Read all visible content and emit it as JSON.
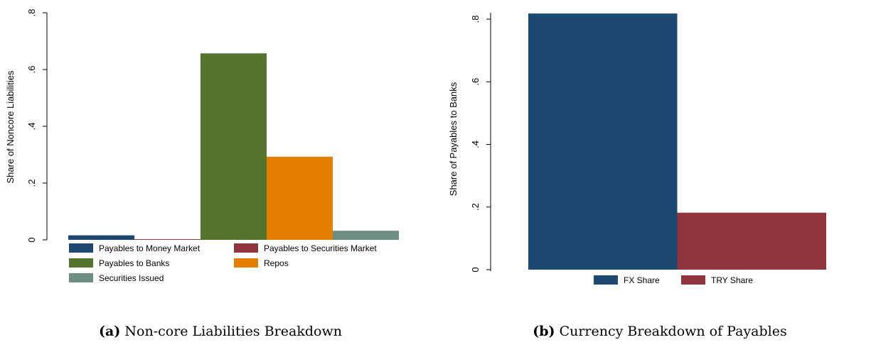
{
  "colors": {
    "navy": "#1c4872",
    "maroon": "#90353b",
    "green": "#55752f",
    "orange": "#e37e00",
    "gray_teal": "#6e8e84"
  },
  "chart_data": [
    {
      "type": "bar",
      "ylabel": "Share of Noncore Liabilities",
      "ylim": [
        0,
        0.8
      ],
      "yticks": [
        0,
        0.2,
        0.4,
        0.6,
        0.8
      ],
      "ytick_labels": [
        "0",
        ".2",
        ".4",
        ".6",
        ".8"
      ],
      "grid": false,
      "legend_position": "bottom",
      "series": [
        {
          "name": "Payables to Money Market",
          "value": 0.016,
          "color": "#1c4872"
        },
        {
          "name": "Payables to Securities Market",
          "value": 0.002,
          "color": "#90353b"
        },
        {
          "name": "Payables to Banks",
          "value": 0.657,
          "color": "#55752f"
        },
        {
          "name": "Repos",
          "value": 0.293,
          "color": "#e37e00"
        },
        {
          "name": "Securities Issued",
          "value": 0.032,
          "color": "#6e8e84"
        }
      ],
      "caption_label": "(a)",
      "caption": "Non-core Liabilities Breakdown"
    },
    {
      "type": "bar",
      "ylabel": "Share of Payables to Banks",
      "ylim": [
        0,
        0.8
      ],
      "yticks": [
        0,
        0.2,
        0.4,
        0.6,
        0.8
      ],
      "ytick_labels": [
        "0",
        ".2",
        ".4",
        ".6",
        ".8"
      ],
      "grid": false,
      "legend_position": "bottom",
      "series": [
        {
          "name": "FX Share",
          "value": 0.818,
          "color": "#1c4872"
        },
        {
          "name": "TRY Share",
          "value": 0.182,
          "color": "#90353b"
        }
      ],
      "caption_label": "(b)",
      "caption": "Currency Breakdown of Payables"
    }
  ]
}
